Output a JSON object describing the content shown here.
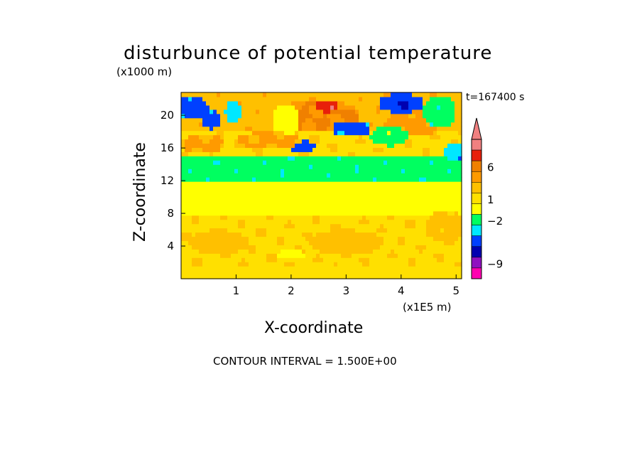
{
  "chart_data": {
    "type": "heatmap",
    "title": "disturbunce of potential temperature",
    "y_scale_label": "(x1000 m)",
    "x_scale_label": "(x1E5 m)",
    "xlabel": "X-coordinate",
    "ylabel": "Z-coordinate",
    "time_label": "t=167400 s",
    "footer": "CONTOUR INTERVAL = 1.500E+00",
    "xlim": [
      0,
      5.1
    ],
    "ylim": [
      0,
      22.8
    ],
    "x_ticks": [
      1,
      2,
      3,
      4,
      5
    ],
    "y_ticks": [
      4,
      8,
      12,
      16,
      20
    ],
    "colorbar": {
      "ticks": [
        6,
        1,
        -2,
        -9
      ],
      "levels": [
        {
          "upper": 99,
          "color": "#f08080"
        },
        {
          "upper": 10.5,
          "color": "#f08080"
        },
        {
          "upper": 7.5,
          "color": "#e8200a"
        },
        {
          "upper": 6.0,
          "color": "#f08000"
        },
        {
          "upper": 4.5,
          "color": "#ff9a00"
        },
        {
          "upper": 3.0,
          "color": "#ffc000"
        },
        {
          "upper": 1.5,
          "color": "#ffe000"
        },
        {
          "upper": 0.0,
          "color": "#ffff00"
        },
        {
          "upper": -1.5,
          "color": "#00ff60"
        },
        {
          "upper": -3.0,
          "color": "#00e8ff"
        },
        {
          "upper": -4.5,
          "color": "#0040ff"
        },
        {
          "upper": -6.0,
          "color": "#0000b0"
        },
        {
          "upper": -9.0,
          "color": "#9010c0"
        },
        {
          "upper": -10.5,
          "color": "#ff00b0"
        }
      ]
    },
    "layers": [
      {
        "z": [
          0,
          1.5
        ],
        "value": 0.8
      },
      {
        "z": [
          1.5,
          8
        ],
        "value": 1.2
      },
      {
        "z": [
          8,
          12
        ],
        "value": -0.8
      },
      {
        "z": [
          12,
          15
        ],
        "value": -2.5
      },
      {
        "z": [
          15,
          18
        ],
        "value": 1.2
      },
      {
        "z": [
          18,
          22.8
        ],
        "value": 2.5
      }
    ],
    "features": [
      {
        "x": 0.7,
        "z": 4.5,
        "rx": 0.55,
        "rz": 1.5,
        "value": 2.2
      },
      {
        "x": 3.0,
        "z": 4.5,
        "rx": 0.7,
        "rz": 1.5,
        "value": 2.2
      },
      {
        "x": 4.8,
        "z": 6.5,
        "rx": 0.35,
        "rz": 2.0,
        "value": 2.0
      },
      {
        "x": 2.0,
        "z": 3.0,
        "rx": 0.25,
        "rz": 0.6,
        "value": -0.7
      },
      {
        "x": 3.0,
        "z": 9.5,
        "rx": 0.5,
        "rz": 0.6,
        "value": -0.7
      },
      {
        "x": 2.5,
        "z": 20.0,
        "rx": 0.75,
        "rz": 2.0,
        "value": 4.5
      },
      {
        "x": 2.65,
        "z": 21.2,
        "rx": 0.22,
        "rz": 0.8,
        "value": 7.0
      },
      {
        "x": 4.2,
        "z": 19.0,
        "rx": 0.5,
        "rz": 1.6,
        "value": 3.5
      },
      {
        "x": 3.1,
        "z": 18.4,
        "rx": 0.35,
        "rz": 1.0,
        "value": -5.0
      },
      {
        "x": 2.2,
        "z": 16.2,
        "rx": 0.25,
        "rz": 0.8,
        "value": -5.0
      },
      {
        "x": 4.0,
        "z": 21.5,
        "rx": 0.4,
        "rz": 1.2,
        "value": -5.0
      },
      {
        "x": 4.05,
        "z": 21.3,
        "rx": 0.1,
        "rz": 0.4,
        "value": -7.0
      },
      {
        "x": 0.2,
        "z": 21.0,
        "rx": 0.3,
        "rz": 1.5,
        "value": -5.0
      },
      {
        "x": 0.55,
        "z": 19.5,
        "rx": 0.15,
        "rz": 1.2,
        "value": -5.0
      },
      {
        "x": 0.95,
        "z": 20.5,
        "rx": 0.15,
        "rz": 1.5,
        "value": -4.0
      },
      {
        "x": 1.9,
        "z": 19.5,
        "rx": 0.25,
        "rz": 2.0,
        "value": -0.7
      },
      {
        "x": 3.8,
        "z": 17.5,
        "rx": 0.35,
        "rz": 1.2,
        "value": -2.0
      },
      {
        "x": 4.7,
        "z": 20.5,
        "rx": 0.3,
        "rz": 2.0,
        "value": -2.5
      },
      {
        "x": 5.0,
        "z": 15.5,
        "rx": 0.2,
        "rz": 1.2,
        "value": -4.0
      },
      {
        "x": 1.6,
        "z": 17.0,
        "rx": 0.6,
        "rz": 1.0,
        "value": 3.2
      },
      {
        "x": 0.4,
        "z": 16.5,
        "rx": 0.4,
        "rz": 1.2,
        "value": 3.2
      }
    ]
  }
}
